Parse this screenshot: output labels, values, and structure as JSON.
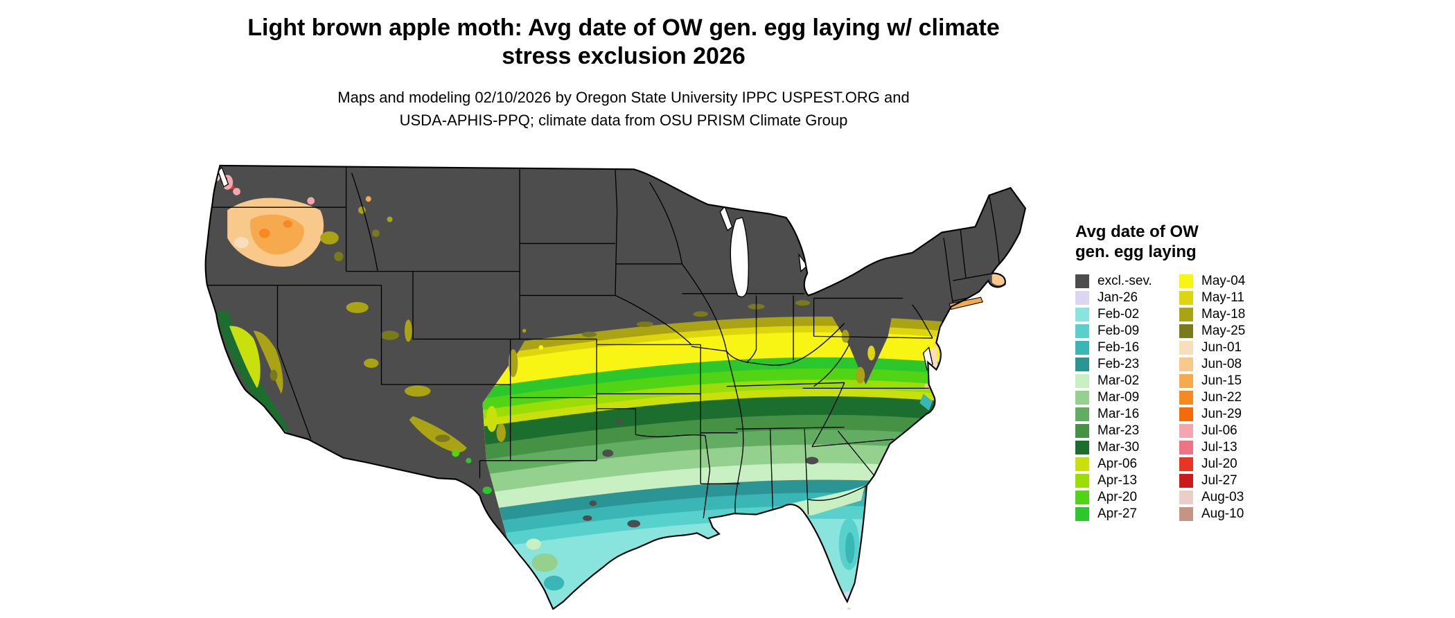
{
  "title": {
    "line1": "Light brown apple moth: Avg date of OW gen. egg laying w/ climate",
    "line2": "stress exclusion 2026"
  },
  "subtitle": {
    "line1": "Maps and modeling 02/10/2026 by Oregon State University IPPC USPEST.ORG and",
    "line2": "USDA-APHIS-PPQ; climate data from OSU PRISM Climate Group"
  },
  "legend": {
    "title_line1": "Avg date of OW",
    "title_line2": "gen. egg laying",
    "columns": [
      {
        "items": [
          {
            "label": "excl.-sev.",
            "color_key": "excl"
          },
          {
            "label": "Jan-26",
            "color_key": "jan26"
          },
          {
            "label": "Feb-02",
            "color_key": "feb02"
          },
          {
            "label": "Feb-09",
            "color_key": "feb09"
          },
          {
            "label": "Feb-16",
            "color_key": "feb16"
          },
          {
            "label": "Feb-23",
            "color_key": "feb23"
          },
          {
            "label": "Mar-02",
            "color_key": "mar02"
          },
          {
            "label": "Mar-09",
            "color_key": "mar09"
          },
          {
            "label": "Mar-16",
            "color_key": "mar16"
          },
          {
            "label": "Mar-23",
            "color_key": "mar23"
          },
          {
            "label": "Mar-30",
            "color_key": "mar30"
          },
          {
            "label": "Apr-06",
            "color_key": "apr06"
          },
          {
            "label": "Apr-13",
            "color_key": "apr13"
          },
          {
            "label": "Apr-20",
            "color_key": "apr20"
          },
          {
            "label": "Apr-27",
            "color_key": "apr27"
          }
        ]
      },
      {
        "items": [
          {
            "label": "May-04",
            "color_key": "may04"
          },
          {
            "label": "May-11",
            "color_key": "may11"
          },
          {
            "label": "May-18",
            "color_key": "may18"
          },
          {
            "label": "May-25",
            "color_key": "may25"
          },
          {
            "label": "Jun-01",
            "color_key": "jun01"
          },
          {
            "label": "Jun-08",
            "color_key": "jun08"
          },
          {
            "label": "Jun-15",
            "color_key": "jun15"
          },
          {
            "label": "Jun-22",
            "color_key": "jun22"
          },
          {
            "label": "Jun-29",
            "color_key": "jun29"
          },
          {
            "label": "Jul-06",
            "color_key": "jul06"
          },
          {
            "label": "Jul-13",
            "color_key": "jul13"
          },
          {
            "label": "Jul-20",
            "color_key": "jul20"
          },
          {
            "label": "Jul-27",
            "color_key": "jul27"
          },
          {
            "label": "Aug-03",
            "color_key": "aug03"
          },
          {
            "label": "Aug-10",
            "color_key": "aug10"
          }
        ]
      }
    ]
  },
  "palette": {
    "excl": "#4d4d4d",
    "jan26": "#dcd6f0",
    "feb02": "#8ae4de",
    "feb09": "#58d0cb",
    "feb16": "#3ab6b6",
    "feb23": "#2b9494",
    "mar02": "#c8f0c2",
    "mar09": "#94d08e",
    "mar16": "#63ad63",
    "mar23": "#459245",
    "mar30": "#1c6e2e",
    "apr06": "#c9e00c",
    "apr13": "#9cdc07",
    "apr20": "#50d414",
    "apr27": "#2cc72c",
    "may04": "#f8f414",
    "may11": "#ded60d",
    "may18": "#aaa314",
    "may25": "#7b7a1b",
    "jun01": "#f9debc",
    "jun08": "#f8c98a",
    "jun15": "#f7a94e",
    "jun22": "#f68a21",
    "jun29": "#f56b0a",
    "jul06": "#f4a6ae",
    "jul13": "#ef7385",
    "jul20": "#e93325",
    "jul27": "#cb1a1a",
    "aug03": "#e8cfc7",
    "aug10": "#c79384"
  }
}
